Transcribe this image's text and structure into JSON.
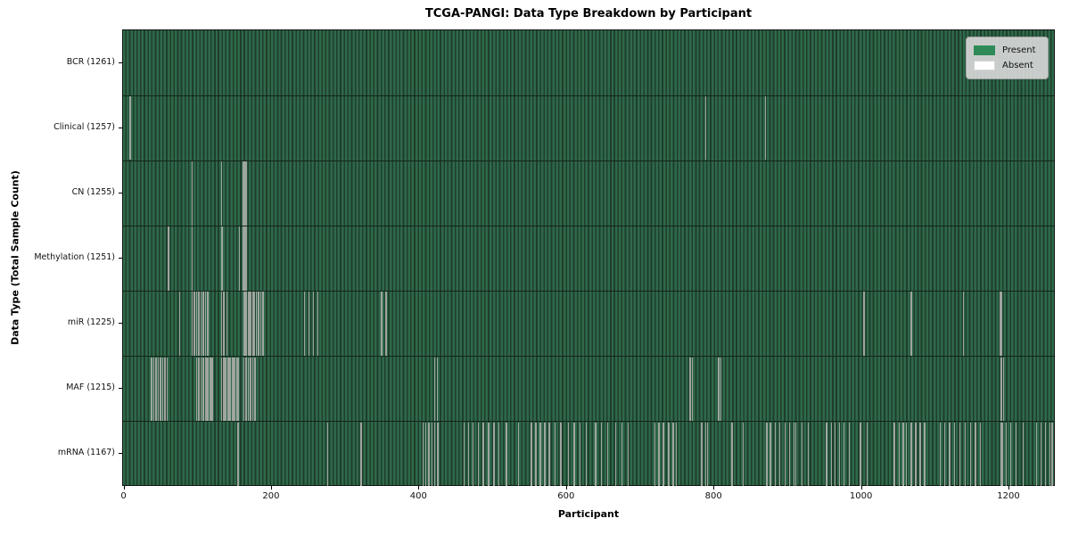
{
  "chart_data": {
    "type": "heatmap",
    "title": "TCGA-PANGI: Data Type Breakdown by Participant",
    "xlabel": "Participant",
    "ylabel": "Data Type (Total Sample Count)",
    "x_max": 1261,
    "x_ticks": [
      0,
      200,
      400,
      600,
      800,
      1000,
      1200
    ],
    "grid": false,
    "legend_position": "upper right",
    "colors": {
      "present": "#2E8B57",
      "absent": "#FFFFFF",
      "stripe_light": "#2f694a",
      "stripe_dark": "#1e3e2c",
      "gap": "#9fa69f",
      "legend_bg": "#d9d9d9"
    },
    "legend": [
      {
        "label": "Present",
        "color": "#2E8B57"
      },
      {
        "label": "Absent",
        "color": "#FFFFFF"
      }
    ],
    "rows": [
      {
        "label": "BCR (1261)",
        "name": "BCR",
        "present_count": 1261,
        "absent": []
      },
      {
        "label": "Clinical (1257)",
        "name": "Clinical",
        "present_count": 1257,
        "absent": [
          8,
          9,
          789,
          870
        ]
      },
      {
        "label": "CN (1255)",
        "name": "CN",
        "present_count": 1255,
        "absent": [
          93,
          133,
          162,
          163,
          165,
          166
        ]
      },
      {
        "label": "Methylation (1251)",
        "name": "Methylation",
        "present_count": 1251,
        "absent": [
          61,
          93,
          133,
          134,
          157,
          162,
          163,
          164,
          165,
          166
        ]
      },
      {
        "label": "miR (1225)",
        "name": "miR",
        "present_count": 1225,
        "absent": [
          76,
          93,
          96,
          99,
          102,
          105,
          108,
          111,
          114,
          133,
          136,
          140,
          163,
          165,
          167,
          169,
          171,
          173,
          175,
          177,
          180,
          183,
          186,
          189,
          245,
          251,
          257,
          263,
          350,
          356,
          1004,
          1068,
          1139,
          1189,
          1190,
          1191
        ]
      },
      {
        "label": "MAF (1215)",
        "name": "MAF",
        "present_count": 1215,
        "absent": [
          38,
          41,
          44,
          47,
          50,
          53,
          56,
          59,
          99,
          101,
          103,
          105,
          107,
          109,
          111,
          113,
          115,
          117,
          119,
          121,
          133,
          135,
          137,
          139,
          141,
          143,
          145,
          147,
          149,
          151,
          153,
          155,
          163,
          166,
          169,
          172,
          175,
          178,
          422,
          425,
          768,
          771,
          807,
          810,
          1190,
          1193
        ]
      },
      {
        "label": "mRNA (1167)",
        "name": "mRNA",
        "present_count": 1167,
        "absent": [
          155,
          277,
          322,
          406,
          410,
          414,
          418,
          422,
          426,
          462,
          468,
          474,
          481,
          487,
          488,
          495,
          502,
          509,
          519,
          535,
          553,
          559,
          565,
          571,
          577,
          585,
          593,
          603,
          611,
          619,
          627,
          640,
          648,
          656,
          667,
          676,
          684,
          720,
          726,
          732,
          739,
          745,
          749,
          784,
          789,
          792,
          825,
          840,
          872,
          877,
          884,
          890,
          897,
          903,
          909,
          911,
          920,
          928,
          953,
          960,
          965,
          971,
          977,
          984,
          999,
          1008,
          1045,
          1052,
          1057,
          1061,
          1068,
          1074,
          1080,
          1086,
          1107,
          1113,
          1120,
          1127,
          1134,
          1141,
          1148,
          1155,
          1162,
          1190,
          1192,
          1197,
          1203,
          1210,
          1220,
          1238,
          1244,
          1250,
          1256,
          1259
        ]
      }
    ]
  }
}
